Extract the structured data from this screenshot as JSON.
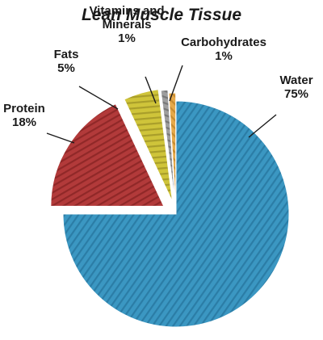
{
  "chart_data": {
    "type": "pie",
    "title": "Lean Muscle Tissue",
    "slices": [
      {
        "label": "Water",
        "label_lines": [
          "Water",
          "75%"
        ],
        "value": 75,
        "color": "#3b97c2",
        "stripe": "#1f6d93",
        "exploded": false
      },
      {
        "label": "Protein",
        "label_lines": [
          "Protein",
          "18%"
        ],
        "value": 18,
        "color": "#b23a3a",
        "stripe": "#7a1d1d",
        "exploded": true
      },
      {
        "label": "Fats",
        "label_lines": [
          "Fats",
          "5%"
        ],
        "value": 5,
        "color": "#cfc43a",
        "stripe": "#8f8620",
        "exploded": true
      },
      {
        "label": "Vitamins and Minerals",
        "label_lines": [
          "Vitamins and",
          "Minerals",
          "1%"
        ],
        "value": 1,
        "color": "#9e9e9e",
        "stripe": "#5e5e5e",
        "exploded": true
      },
      {
        "label": "Carbohydrates",
        "label_lines": [
          "Carbohydrates",
          "1%"
        ],
        "value": 1,
        "color": "#e6a94a",
        "stripe": "#b07720",
        "exploded": true
      }
    ]
  }
}
